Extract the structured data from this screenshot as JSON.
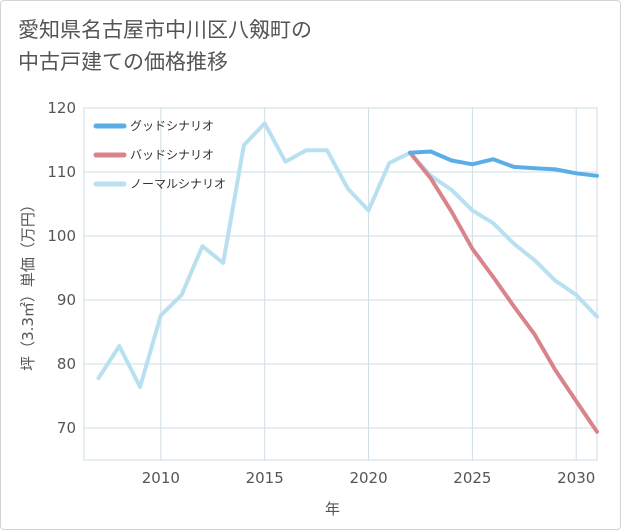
{
  "title_line1": "愛知県名古屋市中川区八剱町の",
  "title_line2": "中古戸建ての価格推移",
  "chart_data": {
    "type": "line",
    "title": "愛知県名古屋市中川区八剱町の中古戸建ての価格推移",
    "xlabel": "年",
    "ylabel": "坪（3.3㎡）単価（万円）",
    "xlim": [
      2006.3,
      2031
    ],
    "ylim": [
      65,
      120
    ],
    "xticks": [
      2010,
      2015,
      2020,
      2025,
      2030
    ],
    "yticks": [
      70,
      80,
      90,
      100,
      110,
      120
    ],
    "grid": true,
    "legend_position": "top-left",
    "series": [
      {
        "name": "グッドシナリオ",
        "color": "#5aaee8",
        "x": [
          2022,
          2023,
          2024,
          2025,
          2026,
          2027,
          2028,
          2029,
          2030,
          2031
        ],
        "values": [
          113,
          113.2,
          111.8,
          111.2,
          112,
          110.8,
          110.6,
          110.4,
          109.8,
          109.4
        ]
      },
      {
        "name": "バッドシナリオ",
        "color": "#d9848b",
        "x": [
          2022,
          2023,
          2024,
          2025,
          2026,
          2027,
          2028,
          2029,
          2030,
          2031
        ],
        "values": [
          113,
          109,
          103.8,
          98,
          93.6,
          89,
          84.6,
          79,
          74.2,
          69.4
        ]
      },
      {
        "name": "ノーマルシナリオ",
        "color": "#b9e0f0",
        "x": [
          2007,
          2008,
          2009,
          2010,
          2011,
          2012,
          2013,
          2014,
          2015,
          2016,
          2017,
          2018,
          2019,
          2020,
          2021,
          2022,
          2023,
          2024,
          2025,
          2026,
          2027,
          2028,
          2029,
          2030,
          2031
        ],
        "values": [
          77.8,
          82.8,
          76.4,
          87.6,
          90.8,
          98.4,
          95.8,
          114.2,
          117.6,
          111.6,
          113.4,
          113.4,
          107.4,
          104,
          111.4,
          113,
          109.4,
          107.2,
          104,
          102,
          98.8,
          96.2,
          93,
          90.8,
          87.4
        ]
      }
    ]
  }
}
